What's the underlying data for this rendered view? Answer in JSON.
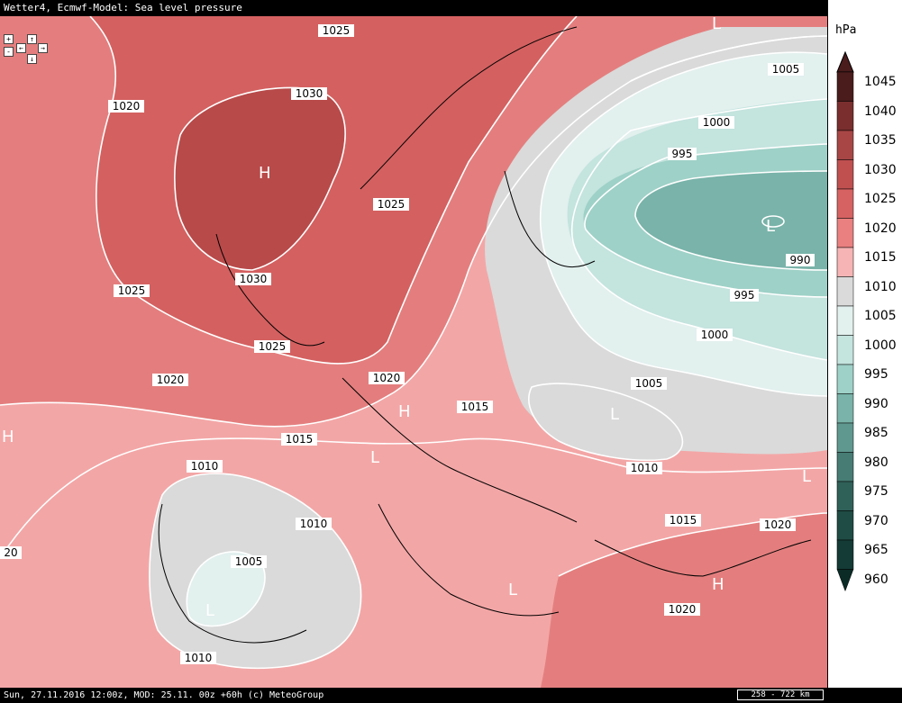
{
  "title": "Wetter4, Ecmwf-Model: Sea level pressure",
  "footer": {
    "text": "Sun, 27.11.2016 12:00z, MOD: 25.11. 00z +60h (c) MeteoGroup",
    "scale": "258 - 722 km"
  },
  "legend": {
    "unit": "hPa",
    "levels": [
      {
        "value": "1045",
        "color": "#4a1c1c"
      },
      {
        "value": "1040",
        "color": "#7a2e2e"
      },
      {
        "value": "1035",
        "color": "#a84646"
      },
      {
        "value": "1030",
        "color": "#c05050"
      },
      {
        "value": "1025",
        "color": "#d76262"
      },
      {
        "value": "1020",
        "color": "#ea8080"
      },
      {
        "value": "1015",
        "color": "#f7b4b4"
      },
      {
        "value": "1010",
        "color": "#dadada"
      },
      {
        "value": "1005",
        "color": "#e2f0ee"
      },
      {
        "value": "1000",
        "color": "#c4e4de"
      },
      {
        "value": "995",
        "color": "#9ed1c7"
      },
      {
        "value": "990",
        "color": "#79b3a9"
      },
      {
        "value": "985",
        "color": "#5f988f"
      },
      {
        "value": "980",
        "color": "#467c74"
      },
      {
        "value": "975",
        "color": "#2f6159"
      },
      {
        "value": "970",
        "color": "#1f4c45"
      },
      {
        "value": "965",
        "color": "#143b35"
      },
      {
        "value": "960",
        "color": "#0b2b26"
      }
    ]
  },
  "isobar_labels": [
    "1025",
    "1030",
    "1020",
    "1030",
    "1025",
    "1025",
    "1025",
    "1020",
    "1020",
    "1015",
    "1015",
    "1010",
    "1010",
    "1005",
    "1010",
    "20",
    "1005",
    "1000",
    "995",
    "990",
    "995",
    "1000",
    "1005",
    "1010",
    "1015",
    "1020",
    "1020"
  ],
  "systems": [
    "H",
    "H",
    "H",
    "H",
    "L",
    "L",
    "L",
    "L",
    "L",
    "L",
    "L"
  ],
  "nav": {
    "zoom_in": "+",
    "zoom_out": "-",
    "up": "↑",
    "down": "↓",
    "left": "←",
    "right": "→"
  }
}
